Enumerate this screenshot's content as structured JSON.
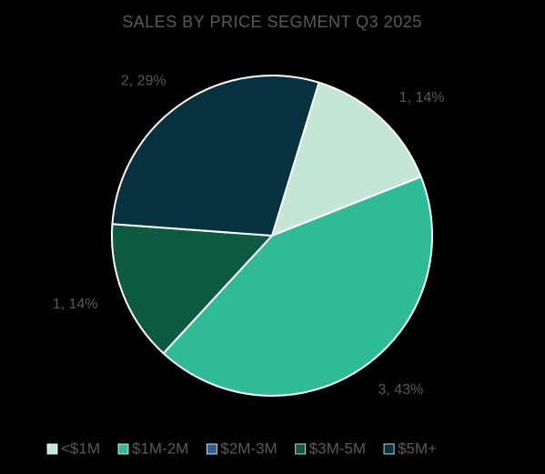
{
  "chart_data": {
    "type": "pie",
    "title": "SALES BY PRICE SEGMENT Q3 2025",
    "categories": [
      "<$1M",
      "$1M-2M",
      "$2M-3M",
      "$3M-5M",
      "$5M+"
    ],
    "values": [
      1,
      3,
      0,
      1,
      2
    ],
    "value_labels": [
      "1, 14%",
      "3, 43%",
      null,
      "1, 14%",
      "2, 29%"
    ],
    "colors": [
      "#c3e6d6",
      "#2fbb96",
      "#2e6190",
      "#0b5a41",
      "#06313f"
    ],
    "legend": "bottom"
  }
}
